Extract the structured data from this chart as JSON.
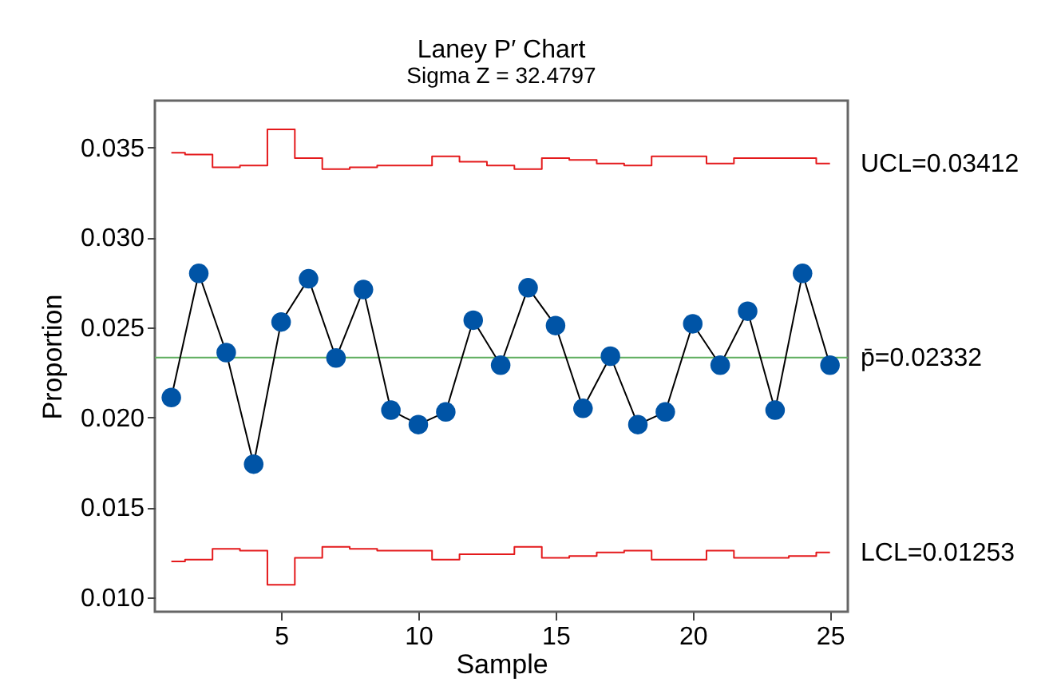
{
  "chart_data": {
    "type": "line",
    "title": "Laney P′ Chart",
    "subtitle": "Sigma Z = 32.4797",
    "xlabel": "Sample",
    "ylabel": "Proportion",
    "x": [
      1,
      2,
      3,
      4,
      5,
      6,
      7,
      8,
      9,
      10,
      11,
      12,
      13,
      14,
      15,
      16,
      17,
      18,
      19,
      20,
      21,
      22,
      23,
      24,
      25
    ],
    "xlim": [
      0.4,
      25.65
    ],
    "xticks": [
      5,
      10,
      15,
      20,
      25
    ],
    "ylim": [
      0.0092,
      0.0376
    ],
    "yticks": [
      0.035,
      {
        "value": 0.03,
        "label": "0.030"
      },
      0.025,
      {
        "value": 0.02,
        "label": "0.020"
      },
      0.015,
      {
        "value": 0.01,
        "label": "0.010"
      }
    ],
    "grid": false,
    "marker": "circle",
    "line_style": "solid",
    "series": [
      {
        "color": "#0054a6",
        "values": [
          0.0211,
          0.028,
          0.0236,
          0.0174,
          0.0253,
          0.0277,
          0.0233,
          0.0271,
          0.0204,
          0.0196,
          0.0203,
          0.0254,
          0.0229,
          0.0272,
          0.0251,
          0.0205,
          0.0234,
          0.0196,
          0.0203,
          0.0252,
          0.0229,
          0.0259,
          0.0204,
          0.028,
          0.0229
        ]
      },
      {
        "type": "step",
        "name": "UCL=0.03412",
        "color": "#e41a1c",
        "marker": "none",
        "values": [
          0.0347,
          0.0346,
          0.0339,
          0.034,
          0.036,
          0.0344,
          0.0338,
          0.0339,
          0.034,
          0.034,
          0.0345,
          0.0342,
          0.034,
          0.0338,
          0.0344,
          0.0343,
          0.0341,
          0.034,
          0.0345,
          0.0345,
          0.0341,
          0.0344,
          0.0344,
          0.0344,
          0.0341
        ]
      },
      {
        "type": "step",
        "name": "LCL=0.01253",
        "color": "#e41a1c",
        "marker": "none",
        "values": [
          0.012,
          0.0121,
          0.0127,
          0.0126,
          0.0107,
          0.0122,
          0.0128,
          0.0127,
          0.0126,
          0.0126,
          0.0121,
          0.0124,
          0.0124,
          0.0128,
          0.0122,
          0.0123,
          0.0125,
          0.0126,
          0.0121,
          0.0121,
          0.0126,
          0.0122,
          0.0122,
          0.0123,
          0.0125
        ]
      }
    ],
    "ref_lines": [
      {
        "axis": "y",
        "value": 0.02332,
        "label": "p̄=0.02332",
        "color": "#5fae5f"
      }
    ]
  }
}
